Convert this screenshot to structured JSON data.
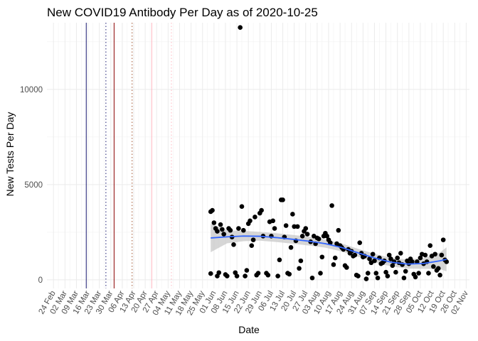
{
  "chart_data": {
    "type": "scatter",
    "title": "New COVID19 Antibody Per Day as of 2020-10-25",
    "xlabel": "Date",
    "ylabel": "New Tests Per Day",
    "xlim": [
      "2020-02-20",
      "2020-11-04"
    ],
    "ylim": [
      -450,
      13500
    ],
    "x_ticks": [
      "2020-02-24",
      "2020-03-02",
      "2020-03-09",
      "2020-03-16",
      "2020-03-23",
      "2020-03-30",
      "2020-04-06",
      "2020-04-13",
      "2020-04-20",
      "2020-04-27",
      "2020-05-04",
      "2020-05-11",
      "2020-05-18",
      "2020-05-25",
      "2020-06-01",
      "2020-06-08",
      "2020-06-15",
      "2020-06-22",
      "2020-06-29",
      "2020-07-06",
      "2020-07-13",
      "2020-07-20",
      "2020-07-27",
      "2020-08-03",
      "2020-08-10",
      "2020-08-17",
      "2020-08-24",
      "2020-08-31",
      "2020-09-07",
      "2020-09-14",
      "2020-09-21",
      "2020-09-28",
      "2020-10-05",
      "2020-10-12",
      "2020-10-19",
      "2020-10-26",
      "2020-11-02"
    ],
    "x_tick_labels": [
      "24 Feb",
      "02 Mar",
      "09 Mar",
      "16 Mar",
      "23 Mar",
      "30 Mar",
      "06 Apr",
      "13 Apr",
      "20 Apr",
      "27 Apr",
      "04 May",
      "11 May",
      "18 May",
      "25 May",
      "01 Jun",
      "08 Jun",
      "15 Jun",
      "22 Jun",
      "29 Jun",
      "06 Jul",
      "13 Jul",
      "20 Jul",
      "27 Jul",
      "03 Aug",
      "10 Aug",
      "17 Aug",
      "24 Aug",
      "31 Aug",
      "07 Sep",
      "14 Sep",
      "21 Sep",
      "28 Sep",
      "05 Oct",
      "12 Oct",
      "19 Oct",
      "26 Oct",
      "02 Nov"
    ],
    "y_ticks": [
      0,
      5000,
      10000
    ],
    "y_tick_labels": [
      "0",
      "5000",
      "10000"
    ],
    "grid": true,
    "vlines": [
      {
        "x": "2020-03-15",
        "color": "#191970",
        "style": "solid"
      },
      {
        "x": "2020-03-27",
        "color": "#191970",
        "style": "dotted"
      },
      {
        "x": "2020-04-01",
        "color": "#8b0000",
        "style": "solid"
      },
      {
        "x": "2020-04-12",
        "color": "#a0522d",
        "style": "dotted"
      },
      {
        "x": "2020-04-24",
        "color": "#ffb6c1",
        "style": "solid"
      },
      {
        "x": "2020-05-06",
        "color": "#ffb6c1",
        "style": "dotted"
      }
    ],
    "points": [
      {
        "x": "2020-05-30",
        "y": 330
      },
      {
        "x": "2020-05-30",
        "y": 3580
      },
      {
        "x": "2020-05-31",
        "y": 3650
      },
      {
        "x": "2020-06-01",
        "y": 3000
      },
      {
        "x": "2020-06-02",
        "y": 2700
      },
      {
        "x": "2020-06-03",
        "y": 200
      },
      {
        "x": "2020-06-03",
        "y": 2550
      },
      {
        "x": "2020-06-04",
        "y": 380
      },
      {
        "x": "2020-06-05",
        "y": 2900
      },
      {
        "x": "2020-06-06",
        "y": 2650
      },
      {
        "x": "2020-06-07",
        "y": 2400
      },
      {
        "x": "2020-06-08",
        "y": 280
      },
      {
        "x": "2020-06-09",
        "y": 200
      },
      {
        "x": "2020-06-10",
        "y": 2700
      },
      {
        "x": "2020-06-11",
        "y": 2600
      },
      {
        "x": "2020-06-12",
        "y": 2250
      },
      {
        "x": "2020-06-13",
        "y": 1850
      },
      {
        "x": "2020-06-14",
        "y": 380
      },
      {
        "x": "2020-06-15",
        "y": 200
      },
      {
        "x": "2020-06-16",
        "y": 2700
      },
      {
        "x": "2020-06-17",
        "y": 13250
      },
      {
        "x": "2020-06-18",
        "y": 3850
      },
      {
        "x": "2020-06-19",
        "y": 2600
      },
      {
        "x": "2020-06-20",
        "y": 200
      },
      {
        "x": "2020-06-21",
        "y": 500
      },
      {
        "x": "2020-06-22",
        "y": 2950
      },
      {
        "x": "2020-06-23",
        "y": 3100
      },
      {
        "x": "2020-06-24",
        "y": 1800
      },
      {
        "x": "2020-06-25",
        "y": 2100
      },
      {
        "x": "2020-06-26",
        "y": 3300
      },
      {
        "x": "2020-06-27",
        "y": 250
      },
      {
        "x": "2020-06-28",
        "y": 350
      },
      {
        "x": "2020-06-29",
        "y": 3500
      },
      {
        "x": "2020-06-30",
        "y": 3650
      },
      {
        "x": "2020-07-01",
        "y": 2300
      },
      {
        "x": "2020-07-03",
        "y": 350
      },
      {
        "x": "2020-07-04",
        "y": 250
      },
      {
        "x": "2020-07-05",
        "y": 3050
      },
      {
        "x": "2020-07-06",
        "y": 2300
      },
      {
        "x": "2020-07-07",
        "y": 3100
      },
      {
        "x": "2020-07-08",
        "y": 2700
      },
      {
        "x": "2020-07-10",
        "y": 200
      },
      {
        "x": "2020-07-11",
        "y": 1050
      },
      {
        "x": "2020-07-12",
        "y": 4200
      },
      {
        "x": "2020-07-13",
        "y": 4200
      },
      {
        "x": "2020-07-14",
        "y": 2250
      },
      {
        "x": "2020-07-15",
        "y": 2850
      },
      {
        "x": "2020-07-16",
        "y": 350
      },
      {
        "x": "2020-07-17",
        "y": 300
      },
      {
        "x": "2020-07-18",
        "y": 1700
      },
      {
        "x": "2020-07-19",
        "y": 3450
      },
      {
        "x": "2020-07-20",
        "y": 2800
      },
      {
        "x": "2020-07-21",
        "y": 2050
      },
      {
        "x": "2020-07-22",
        "y": 2800
      },
      {
        "x": "2020-07-23",
        "y": 600
      },
      {
        "x": "2020-07-24",
        "y": 1000
      },
      {
        "x": "2020-07-25",
        "y": 2300
      },
      {
        "x": "2020-07-26",
        "y": 2550
      },
      {
        "x": "2020-07-27",
        "y": 2700
      },
      {
        "x": "2020-07-28",
        "y": 2400
      },
      {
        "x": "2020-07-30",
        "y": 2000
      },
      {
        "x": "2020-07-31",
        "y": 100
      },
      {
        "x": "2020-08-01",
        "y": 2300
      },
      {
        "x": "2020-08-02",
        "y": 1900
      },
      {
        "x": "2020-08-03",
        "y": 2200
      },
      {
        "x": "2020-08-04",
        "y": 2150
      },
      {
        "x": "2020-08-05",
        "y": 350
      },
      {
        "x": "2020-08-06",
        "y": 1200
      },
      {
        "x": "2020-08-07",
        "y": 2300
      },
      {
        "x": "2020-08-08",
        "y": 2450
      },
      {
        "x": "2020-08-09",
        "y": 2300
      },
      {
        "x": "2020-08-10",
        "y": 2100
      },
      {
        "x": "2020-08-11",
        "y": 1950
      },
      {
        "x": "2020-08-12",
        "y": 3900
      },
      {
        "x": "2020-08-13",
        "y": 800
      },
      {
        "x": "2020-08-14",
        "y": 1150
      },
      {
        "x": "2020-08-15",
        "y": 1900
      },
      {
        "x": "2020-08-16",
        "y": 2600
      },
      {
        "x": "2020-08-17",
        "y": 1800
      },
      {
        "x": "2020-08-18",
        "y": 1700
      },
      {
        "x": "2020-08-19",
        "y": 1600
      },
      {
        "x": "2020-08-20",
        "y": 750
      },
      {
        "x": "2020-08-21",
        "y": 650
      },
      {
        "x": "2020-08-22",
        "y": 1600
      },
      {
        "x": "2020-08-23",
        "y": 1400
      },
      {
        "x": "2020-08-24",
        "y": 1500
      },
      {
        "x": "2020-08-25",
        "y": 1250
      },
      {
        "x": "2020-08-26",
        "y": 1300
      },
      {
        "x": "2020-08-27",
        "y": 250
      },
      {
        "x": "2020-08-28",
        "y": 200
      },
      {
        "x": "2020-08-29",
        "y": 1950
      },
      {
        "x": "2020-08-30",
        "y": 1400
      },
      {
        "x": "2020-08-31",
        "y": 1200
      },
      {
        "x": "2020-09-01",
        "y": 1250
      },
      {
        "x": "2020-09-02",
        "y": 50
      },
      {
        "x": "2020-09-03",
        "y": 350
      },
      {
        "x": "2020-09-04",
        "y": 1100
      },
      {
        "x": "2020-09-05",
        "y": 900
      },
      {
        "x": "2020-09-06",
        "y": 1350
      },
      {
        "x": "2020-09-07",
        "y": 1000
      },
      {
        "x": "2020-09-08",
        "y": 350
      },
      {
        "x": "2020-09-09",
        "y": 100
      },
      {
        "x": "2020-09-10",
        "y": 1150
      },
      {
        "x": "2020-09-11",
        "y": 850
      },
      {
        "x": "2020-09-12",
        "y": 900
      },
      {
        "x": "2020-09-13",
        "y": 1000
      },
      {
        "x": "2020-09-14",
        "y": 400
      },
      {
        "x": "2020-09-15",
        "y": 200
      },
      {
        "x": "2020-09-16",
        "y": 1300
      },
      {
        "x": "2020-09-17",
        "y": 1100
      },
      {
        "x": "2020-09-18",
        "y": 750
      },
      {
        "x": "2020-09-19",
        "y": 950
      },
      {
        "x": "2020-09-20",
        "y": 400
      },
      {
        "x": "2020-09-21",
        "y": 1150
      },
      {
        "x": "2020-09-22",
        "y": 900
      },
      {
        "x": "2020-09-23",
        "y": 1400
      },
      {
        "x": "2020-09-24",
        "y": 800
      },
      {
        "x": "2020-09-25",
        "y": 100
      },
      {
        "x": "2020-09-26",
        "y": 450
      },
      {
        "x": "2020-09-27",
        "y": 1000
      },
      {
        "x": "2020-09-28",
        "y": 850
      },
      {
        "x": "2020-09-29",
        "y": 1100
      },
      {
        "x": "2020-09-30",
        "y": 950
      },
      {
        "x": "2020-10-01",
        "y": 300
      },
      {
        "x": "2020-10-02",
        "y": 150
      },
      {
        "x": "2020-10-03",
        "y": 950
      },
      {
        "x": "2020-10-04",
        "y": 350
      },
      {
        "x": "2020-10-05",
        "y": 1150
      },
      {
        "x": "2020-10-06",
        "y": 1350
      },
      {
        "x": "2020-10-07",
        "y": 850
      },
      {
        "x": "2020-10-08",
        "y": 1300
      },
      {
        "x": "2020-10-09",
        "y": 950
      },
      {
        "x": "2020-10-10",
        "y": 350
      },
      {
        "x": "2020-10-11",
        "y": 1800
      },
      {
        "x": "2020-10-12",
        "y": 1250
      },
      {
        "x": "2020-10-13",
        "y": 700
      },
      {
        "x": "2020-10-14",
        "y": 1350
      },
      {
        "x": "2020-10-15",
        "y": 500
      },
      {
        "x": "2020-10-16",
        "y": 600
      },
      {
        "x": "2020-10-17",
        "y": 250
      },
      {
        "x": "2020-10-18",
        "y": 1300
      },
      {
        "x": "2020-10-19",
        "y": 2100
      },
      {
        "x": "2020-10-20",
        "y": 1050
      },
      {
        "x": "2020-10-21",
        "y": 950
      }
    ],
    "trend": {
      "color": "#3366ff",
      "band_color": "#c8c8c8",
      "x": [
        "2020-05-30",
        "2020-06-09",
        "2020-06-19",
        "2020-06-29",
        "2020-07-09",
        "2020-07-19",
        "2020-07-29",
        "2020-08-08",
        "2020-08-18",
        "2020-08-28",
        "2020-09-07",
        "2020-09-17",
        "2020-09-27",
        "2020-10-07",
        "2020-10-17",
        "2020-10-21"
      ],
      "y": [
        2200,
        2260,
        2300,
        2290,
        2220,
        2130,
        2030,
        1900,
        1700,
        1420,
        1150,
        930,
        830,
        860,
        1000,
        1080
      ],
      "lower": [
        1450,
        1920,
        2030,
        2060,
        1990,
        1900,
        1800,
        1690,
        1490,
        1210,
        930,
        710,
        590,
        580,
        560,
        450
      ],
      "upper": [
        2950,
        2600,
        2570,
        2520,
        2450,
        2360,
        2260,
        2110,
        1910,
        1630,
        1370,
        1150,
        1070,
        1140,
        1440,
        1710
      ]
    }
  }
}
